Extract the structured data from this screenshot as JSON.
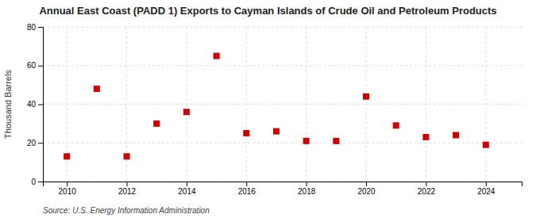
{
  "chart_data": {
    "type": "scatter",
    "title": "Annual East Coast (PADD 1) Exports to Cayman Islands of Crude Oil and Petroleum Products",
    "ylabel": "Thousand Barrels",
    "annotations": [
      "Source: U.S. Energy Information Administration"
    ],
    "x": [
      2010,
      2011,
      2012,
      2013,
      2014,
      2015,
      2016,
      2017,
      2018,
      2019,
      2020,
      2021,
      2022,
      2023,
      2024
    ],
    "values": [
      13,
      48,
      13,
      30,
      36,
      65,
      25,
      26,
      21,
      21,
      44,
      29,
      23,
      24,
      19
    ],
    "color": "#cc0000",
    "marker": "square",
    "xlim": [
      2009.2,
      2025.2
    ],
    "xticks": [
      2010,
      2012,
      2014,
      2016,
      2018,
      2020,
      2022,
      2024
    ],
    "ylim": [
      0,
      80
    ],
    "yticks": [
      0,
      20,
      40,
      60,
      80
    ],
    "grid": true
  }
}
